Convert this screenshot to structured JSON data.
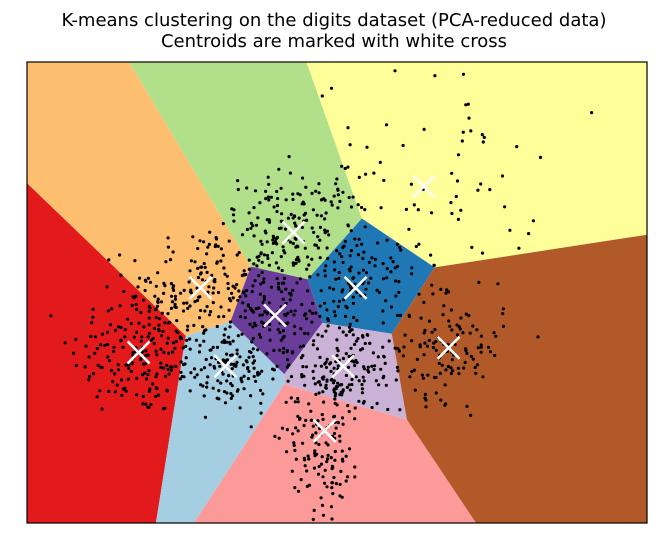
{
  "chart_data": {
    "type": "scatter",
    "title": "K-means clustering on the digits dataset (PCA-reduced data)",
    "subtitle": "Centroids are marked with white cross",
    "xlabel": "",
    "ylabel": "",
    "xlim": [
      0,
      1
    ],
    "ylim": [
      0,
      1
    ],
    "grid": false,
    "ticks": false,
    "background": "voronoi-decision-regions",
    "region_colors": [
      "#e31a1c",
      "#fdbf6f",
      "#b2df8a",
      "#ffff99",
      "#1f78b4",
      "#6a3d9a",
      "#a6cee3",
      "#cab2d6",
      "#fb9a99",
      "#b15928"
    ],
    "point_color": "#000000",
    "centroid_marker": "x",
    "centroid_color": "#ffffff",
    "centroids": [
      {
        "x": 0.18,
        "y": 0.37
      },
      {
        "x": 0.28,
        "y": 0.51
      },
      {
        "x": 0.43,
        "y": 0.63
      },
      {
        "x": 0.64,
        "y": 0.73
      },
      {
        "x": 0.53,
        "y": 0.51
      },
      {
        "x": 0.4,
        "y": 0.45
      },
      {
        "x": 0.32,
        "y": 0.34
      },
      {
        "x": 0.51,
        "y": 0.34
      },
      {
        "x": 0.48,
        "y": 0.2
      },
      {
        "x": 0.68,
        "y": 0.38
      }
    ],
    "points_per_cluster": [
      170,
      160,
      190,
      75,
      110,
      80,
      140,
      120,
      160,
      120
    ],
    "point_spread": [
      [
        0.055,
        0.07
      ],
      [
        0.06,
        0.06
      ],
      [
        0.06,
        0.065
      ],
      [
        0.09,
        0.12
      ],
      [
        0.05,
        0.06
      ],
      [
        0.04,
        0.05
      ],
      [
        0.045,
        0.05
      ],
      [
        0.05,
        0.05
      ],
      [
        0.03,
        0.09
      ],
      [
        0.045,
        0.055
      ]
    ]
  }
}
